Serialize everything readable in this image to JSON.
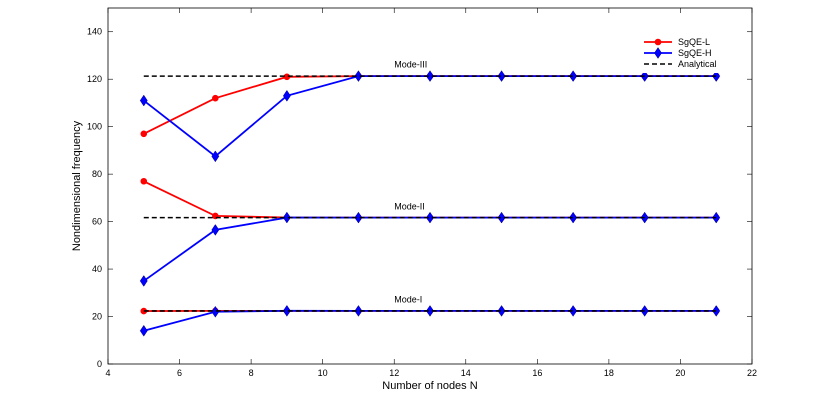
{
  "chart_data": {
    "type": "line",
    "xlabel": "Number of nodes N",
    "ylabel": "Nondimensional frequency",
    "xlim": [
      4,
      22
    ],
    "ylim": [
      0,
      150
    ],
    "xticks": [
      4,
      6,
      8,
      10,
      12,
      14,
      16,
      18,
      20,
      22
    ],
    "yticks": [
      0,
      20,
      40,
      60,
      80,
      100,
      120,
      140
    ],
    "grid": false,
    "legend_position": "top-right",
    "series": [
      {
        "name": "SgQE-L",
        "color": "#ff0000",
        "marker": "dot",
        "style": "solid",
        "segments": [
          {
            "x": [
              5,
              7,
              9,
              11,
              13,
              15,
              17,
              19,
              21
            ],
            "y": [
              22.3,
              22.37,
              22.37,
              22.37,
              22.37,
              22.37,
              22.37,
              22.37,
              22.37
            ]
          },
          {
            "x": [
              5,
              7,
              9,
              11,
              13,
              15,
              17,
              19,
              21
            ],
            "y": [
              77,
              62.4,
              61.7,
              61.67,
              61.67,
              61.67,
              61.67,
              61.67,
              61.67
            ]
          },
          {
            "x": [
              5,
              7,
              9,
              11,
              13,
              15,
              17,
              19,
              21
            ],
            "y": [
              97,
              112,
              121,
              121.3,
              121.3,
              121.3,
              121.3,
              121.3,
              121.3
            ]
          }
        ]
      },
      {
        "name": "SgQE-H",
        "color": "#0000ff",
        "marker": "diamond",
        "style": "solid",
        "segments": [
          {
            "x": [
              5,
              7,
              9,
              11,
              13,
              15,
              17,
              19,
              21
            ],
            "y": [
              14,
              22,
              22.4,
              22.37,
              22.37,
              22.37,
              22.37,
              22.37,
              22.37
            ]
          },
          {
            "x": [
              5,
              7,
              9,
              11,
              13,
              15,
              17,
              19,
              21
            ],
            "y": [
              35,
              56.5,
              61.7,
              61.67,
              61.67,
              61.67,
              61.67,
              61.67,
              61.67
            ]
          },
          {
            "x": [
              5,
              7,
              9,
              11,
              13,
              15,
              17,
              19,
              21
            ],
            "y": [
              111,
              87.5,
              113,
              121.3,
              121.3,
              121.3,
              121.3,
              121.3,
              121.3
            ]
          }
        ]
      },
      {
        "name": "Analytical",
        "color": "#000000",
        "marker": "none",
        "style": "dashed",
        "segments": [
          {
            "x": [
              5,
              21
            ],
            "y": [
              22.37,
              22.37
            ]
          },
          {
            "x": [
              5,
              21
            ],
            "y": [
              61.67,
              61.67
            ]
          },
          {
            "x": [
              5,
              21
            ],
            "y": [
              121.3,
              121.3
            ]
          }
        ]
      }
    ],
    "annotations": [
      {
        "text": "Mode-I",
        "x": 12,
        "y": 26
      },
      {
        "text": "Mode-II",
        "x": 12,
        "y": 65
      },
      {
        "text": "Mode-III",
        "x": 12,
        "y": 125
      }
    ]
  }
}
